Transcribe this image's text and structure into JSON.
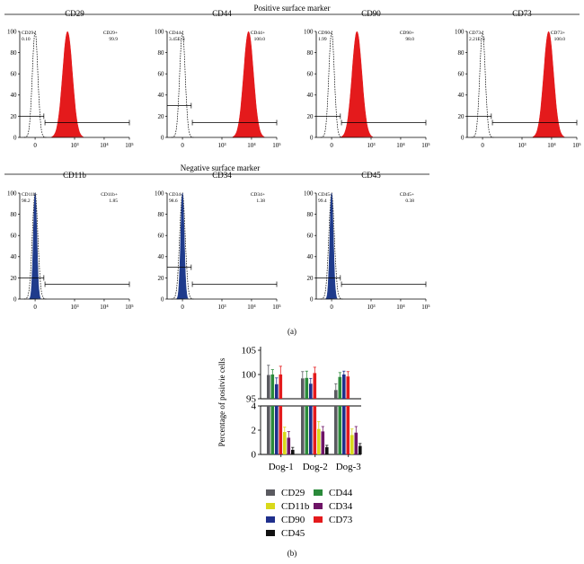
{
  "section_positive": "Positive surface marker",
  "section_negative": "Negative surface marker",
  "panel_a_label": "(a)",
  "panel_b_label": "(b)",
  "colors": {
    "positive_fill": "#e41a1c",
    "negative_fill": "#1f3b8c",
    "CD29": "#5a5a60",
    "CD11b": "#d9d91a",
    "CD90": "#1f2f8c",
    "CD45": "#111111",
    "CD44": "#2a8a3a",
    "CD34": "#6e1466",
    "CD73": "#e41a1c"
  },
  "histograms": {
    "y_ticks": [
      "100",
      "80",
      "60",
      "40",
      "20",
      "0"
    ],
    "x_ticks": [
      "0",
      "10³",
      "10⁴",
      "10⁵"
    ],
    "positive": [
      {
        "marker": "CD29",
        "neg_label": "CD29-",
        "neg_pct": "0.10",
        "pos_label": "CD29+",
        "pos_pct": "99.9",
        "peak_log": 2.75,
        "peak_width": 0.13
      },
      {
        "marker": "CD44",
        "neg_label": "CD44-",
        "neg_pct": "3.45E-3",
        "pos_label": "CD44+",
        "pos_pct": "100.0",
        "peak_log": 3.9,
        "peak_width": 0.13
      },
      {
        "marker": "CD90",
        "neg_label": "CD90-",
        "neg_pct": "1.99",
        "pos_label": "CD90+",
        "pos_pct": "98.0",
        "peak_log": 2.5,
        "peak_width": 0.14
      },
      {
        "marker": "CD73",
        "neg_label": "CD73-",
        "neg_pct": "2.21E-3",
        "pos_label": "CD73+",
        "pos_pct": "100.0",
        "peak_log": 3.9,
        "peak_width": 0.13
      }
    ],
    "negative": [
      {
        "marker": "CD11b",
        "neg_label": "CD11b-",
        "neg_pct": "98.2",
        "pos_label": "CD11b+",
        "pos_pct": "1.85"
      },
      {
        "marker": "CD34",
        "neg_label": "CD34-",
        "neg_pct": "98.6",
        "pos_label": "CD34+",
        "pos_pct": "1.38"
      },
      {
        "marker": "CD45",
        "neg_label": "CD45-",
        "neg_pct": "99.4",
        "pos_label": "CD45+",
        "pos_pct": "0.38"
      }
    ]
  },
  "chart_data": {
    "type": "bar",
    "ylabel": "Percentage of positvie cells",
    "categories": [
      "Dog-1",
      "Dog-2",
      "Dog-3"
    ],
    "y_ticks_upper": [
      "105",
      "100",
      "95"
    ],
    "y_ticks_lower": [
      "4",
      "2",
      "0"
    ],
    "series": [
      {
        "name": "CD29",
        "values": [
          99.9,
          99.2,
          96.8
        ],
        "errors": [
          2.0,
          1.4,
          1.3
        ]
      },
      {
        "name": "CD44",
        "values": [
          100.0,
          99.3,
          99.5
        ],
        "errors": [
          1.0,
          1.4,
          0.9
        ]
      },
      {
        "name": "CD90",
        "values": [
          98.0,
          98.1,
          100.0
        ],
        "errors": [
          1.3,
          1.1,
          0.7
        ]
      },
      {
        "name": "CD73",
        "values": [
          100.0,
          100.3,
          99.6
        ],
        "errors": [
          1.7,
          1.2,
          1.0
        ]
      },
      {
        "name": "CD11b",
        "values": [
          1.85,
          2.1,
          1.6
        ],
        "errors": [
          0.4,
          0.6,
          0.5
        ]
      },
      {
        "name": "CD34",
        "values": [
          1.38,
          1.9,
          1.8
        ],
        "errors": [
          0.5,
          0.4,
          0.5
        ]
      },
      {
        "name": "CD45",
        "values": [
          0.38,
          0.6,
          0.7
        ],
        "errors": [
          0.2,
          0.15,
          0.2
        ]
      }
    ],
    "legend_order": [
      "CD29",
      "CD44",
      "CD11b",
      "CD34",
      "CD90",
      "CD73",
      "CD45"
    ]
  }
}
